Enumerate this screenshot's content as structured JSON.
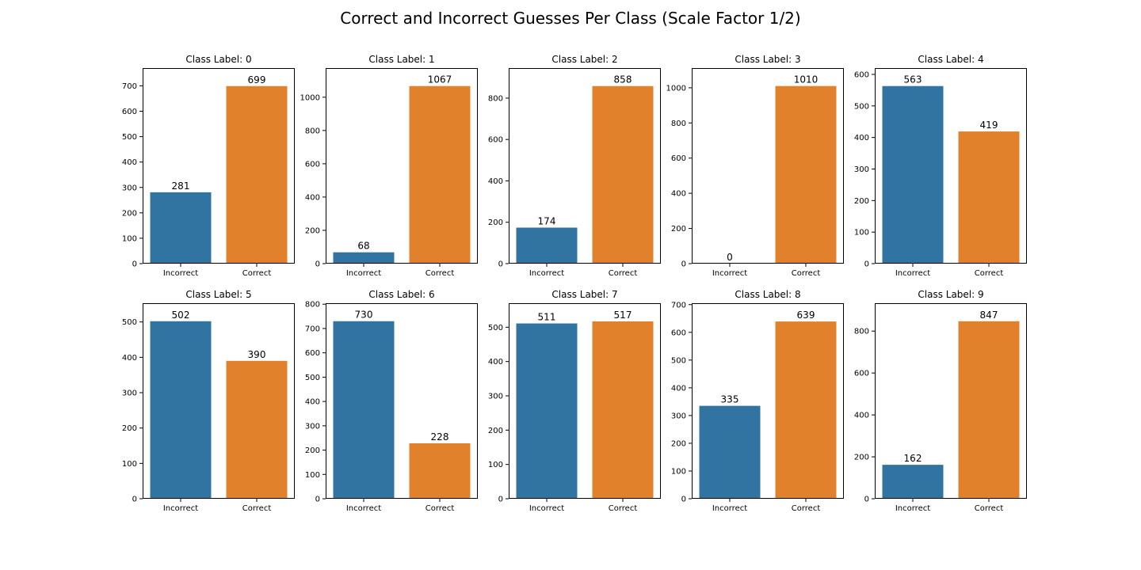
{
  "title": "Correct and Incorrect Guesses Per Class (Scale Factor 1/2)",
  "colors": {
    "Incorrect": "#3274a1",
    "Correct": "#e1812c"
  },
  "chart_data": [
    {
      "type": "bar",
      "title": "Class Label: 0",
      "categories": [
        "Incorrect",
        "Correct"
      ],
      "values": [
        281,
        699
      ],
      "ylim": [
        0,
        770
      ],
      "yticks": [
        0,
        100,
        200,
        300,
        400,
        500,
        600,
        700
      ]
    },
    {
      "type": "bar",
      "title": "Class Label: 1",
      "categories": [
        "Incorrect",
        "Correct"
      ],
      "values": [
        68,
        1067
      ],
      "ylim": [
        0,
        1175
      ],
      "yticks": [
        0,
        200,
        400,
        600,
        800,
        1000
      ]
    },
    {
      "type": "bar",
      "title": "Class Label: 2",
      "categories": [
        "Incorrect",
        "Correct"
      ],
      "values": [
        174,
        858
      ],
      "ylim": [
        0,
        945
      ],
      "yticks": [
        0,
        200,
        400,
        600,
        800
      ]
    },
    {
      "type": "bar",
      "title": "Class Label: 3",
      "categories": [
        "Incorrect",
        "Correct"
      ],
      "values": [
        0,
        1010
      ],
      "ylim": [
        0,
        1112
      ],
      "yticks": [
        0,
        200,
        400,
        600,
        800,
        1000
      ]
    },
    {
      "type": "bar",
      "title": "Class Label: 4",
      "categories": [
        "Incorrect",
        "Correct"
      ],
      "values": [
        563,
        419
      ],
      "ylim": [
        0,
        620
      ],
      "yticks": [
        0,
        100,
        200,
        300,
        400,
        500,
        600
      ]
    },
    {
      "type": "bar",
      "title": "Class Label: 5",
      "categories": [
        "Incorrect",
        "Correct"
      ],
      "values": [
        502,
        390
      ],
      "ylim": [
        0,
        553
      ],
      "yticks": [
        0,
        100,
        200,
        300,
        400,
        500
      ]
    },
    {
      "type": "bar",
      "title": "Class Label: 6",
      "categories": [
        "Incorrect",
        "Correct"
      ],
      "values": [
        730,
        228
      ],
      "ylim": [
        0,
        804
      ],
      "yticks": [
        0,
        100,
        200,
        300,
        400,
        500,
        600,
        700,
        800
      ]
    },
    {
      "type": "bar",
      "title": "Class Label: 7",
      "categories": [
        "Incorrect",
        "Correct"
      ],
      "values": [
        511,
        517
      ],
      "ylim": [
        0,
        570
      ],
      "yticks": [
        0,
        100,
        200,
        300,
        400,
        500
      ]
    },
    {
      "type": "bar",
      "title": "Class Label: 8",
      "categories": [
        "Incorrect",
        "Correct"
      ],
      "values": [
        335,
        639
      ],
      "ylim": [
        0,
        705
      ],
      "yticks": [
        0,
        100,
        200,
        300,
        400,
        500,
        600,
        700
      ]
    },
    {
      "type": "bar",
      "title": "Class Label: 9",
      "categories": [
        "Incorrect",
        "Correct"
      ],
      "values": [
        162,
        847
      ],
      "ylim": [
        0,
        933
      ],
      "yticks": [
        0,
        200,
        400,
        600,
        800
      ]
    }
  ]
}
